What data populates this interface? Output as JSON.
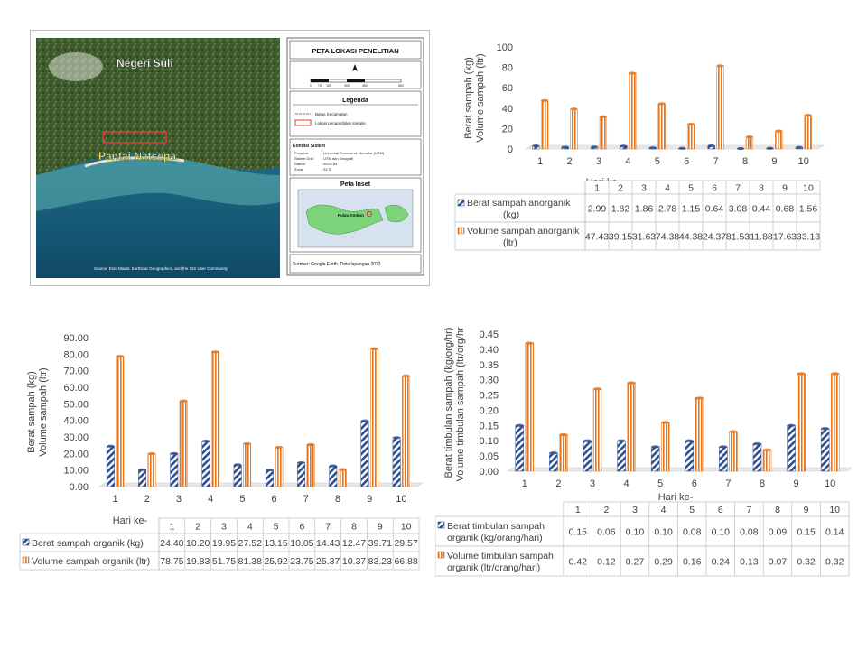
{
  "map": {
    "title": "PETA LOKASI PENELITIAN",
    "scale_labels": [
      "0",
      "75",
      "150",
      "300",
      "450",
      "600"
    ],
    "legend_title": "Legenda",
    "legend_items": [
      "Batas Kecamatan",
      "Lokasi pengambilan sample"
    ],
    "system_title": "Kondisi Sistem",
    "system_rows": [
      [
        "Proyeksi",
        ": Universal Transverse Mercator (UTM)"
      ],
      [
        "Sistem Grid",
        ": UTM dan Geografi"
      ],
      [
        "Datum",
        ": WGS 84"
      ],
      [
        "Zona",
        ": 52 S"
      ]
    ],
    "inset_title": "Peta Inset",
    "inset_label": "Pulau Ambon",
    "source": "Sumber: Google Earth, Data lapangan 2022",
    "place_labels": [
      "Negeri Suli",
      "Pantai Natsepa"
    ],
    "credits": "Source: Esri, Maxar, Earthstar Geographics, and the GIS User Community",
    "colors": {
      "sea": "#1b6f8a",
      "land": "#3d5a2c",
      "marker": "#e53935"
    }
  },
  "chart_data": [
    {
      "id": "anorganik",
      "type": "bar",
      "ylabel_lines": [
        "Berat sampah (kg)",
        "Volume sampah (ltr)"
      ],
      "xlabel": "Hari ke-",
      "ylim": [
        0,
        100
      ],
      "yticks": [
        "0",
        "20",
        "40",
        "60",
        "80",
        "100"
      ],
      "categories": [
        "1",
        "2",
        "3",
        "4",
        "5",
        "6",
        "7",
        "8",
        "9",
        "10"
      ],
      "series": [
        {
          "name": "Berat sampah anorganik (kg)",
          "values": [
            2.99,
            1.82,
            1.86,
            2.78,
            1.15,
            0.64,
            3.08,
            0.44,
            0.68,
            1.56
          ],
          "display": [
            "2.99",
            "1.82",
            "1.86",
            "2.78",
            "1.15",
            "0.64",
            "3.08",
            "0.44",
            "0.68",
            "1.56"
          ]
        },
        {
          "name": "Volume sampah anorganik (ltr)",
          "values": [
            47.43,
            39.15,
            31.63,
            74.38,
            44.38,
            24.37,
            81.53,
            11.88,
            17.63,
            33.13
          ],
          "display": [
            "47.43",
            "39.15",
            "31.63",
            "74.38",
            "44.38",
            "24.37",
            "81.53",
            "11.88",
            "17.63",
            "33.13"
          ]
        }
      ]
    },
    {
      "id": "organik",
      "type": "bar",
      "ylabel_lines": [
        "Berat sampah (kg)",
        "Volume sampah (ltr)"
      ],
      "xlabel": "Hari ke-",
      "ylim": [
        0,
        90
      ],
      "yticks": [
        "0.00",
        "10.00",
        "20.00",
        "30.00",
        "40.00",
        "50.00",
        "60.00",
        "70.00",
        "80.00",
        "90.00"
      ],
      "categories": [
        "1",
        "2",
        "3",
        "4",
        "5",
        "6",
        "7",
        "8",
        "9",
        "10"
      ],
      "series": [
        {
          "name": "Berat sampah organik (kg)",
          "values": [
            24.4,
            10.2,
            19.95,
            27.52,
            13.15,
            10.05,
            14.43,
            12.47,
            39.71,
            29.57
          ],
          "display": [
            "24.40",
            "10.20",
            "19.95",
            "27.52",
            "13.15",
            "10.05",
            "14.43",
            "12.47",
            "39.71",
            "29.57"
          ]
        },
        {
          "name": "Volume sampah organik (ltr)",
          "values": [
            78.75,
            19.83,
            51.75,
            81.38,
            25.92,
            23.75,
            25.37,
            10.37,
            83.23,
            66.88
          ],
          "display": [
            "78.75",
            "19.83",
            "51.75",
            "81.38",
            "25.92",
            "23.75",
            "25.37",
            "10.37",
            "83.23",
            "66.88"
          ]
        }
      ]
    },
    {
      "id": "timbulan",
      "type": "bar",
      "ylabel_lines": [
        "Berat timbulan sampah (kg/org/hr)",
        "Volume timbulan sampah (ltr/org/hr)"
      ],
      "xlabel": "Hari ke-",
      "ylim": [
        0,
        0.45
      ],
      "yticks": [
        "0.00",
        "0.05",
        "0.10",
        "0.15",
        "0.20",
        "0.25",
        "0.30",
        "0.35",
        "0.40",
        "0.45"
      ],
      "categories": [
        "1",
        "2",
        "3",
        "4",
        "5",
        "6",
        "7",
        "8",
        "9",
        "10"
      ],
      "series": [
        {
          "name": "Berat timbulan sampah organik (kg/orang/hari)",
          "values": [
            0.15,
            0.06,
            0.1,
            0.1,
            0.08,
            0.1,
            0.08,
            0.09,
            0.15,
            0.14
          ],
          "display": [
            "0.15",
            "0.06",
            "0.10",
            "0.10",
            "0.08",
            "0.10",
            "0.08",
            "0.09",
            "0.15",
            "0.14"
          ]
        },
        {
          "name": "Volume timbulan sampah organik (ltr/orang/hari)",
          "values": [
            0.42,
            0.12,
            0.27,
            0.29,
            0.16,
            0.24,
            0.13,
            0.07,
            0.32,
            0.32
          ],
          "display": [
            "0.42",
            "0.12",
            "0.27",
            "0.29",
            "0.16",
            "0.24",
            "0.13",
            "0.07",
            "0.32",
            "0.32"
          ]
        }
      ]
    }
  ],
  "colors": {
    "weight_bar": "#2f4f8f",
    "volume_bar": "#e3761f",
    "gridline": "#d9d9d9",
    "table_border": "#bfbfbf"
  }
}
